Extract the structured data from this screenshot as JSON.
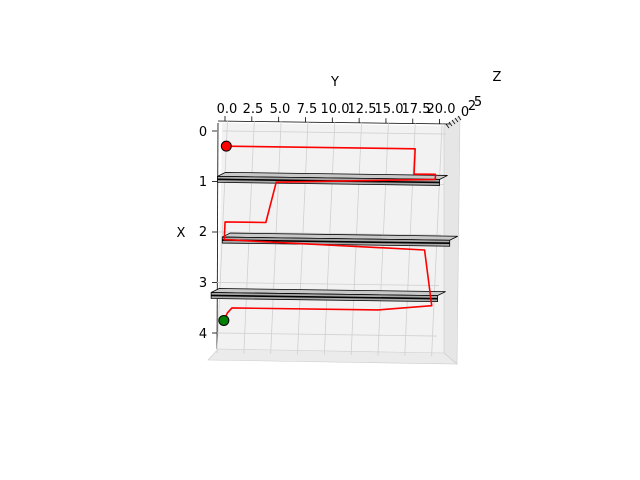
{
  "chart_data": {
    "type": "line3d",
    "axes": {
      "x_label": "X",
      "y_label": "Y",
      "z_label": "Z",
      "x_ticks": [
        "0",
        "1",
        "2",
        "3",
        "4"
      ],
      "y_ticks": [
        "0.0",
        "2.5",
        "5.0",
        "7.5",
        "10.0",
        "12.5",
        "15.0",
        "17.5",
        "20.0"
      ],
      "z_ticks": [
        "0",
        "2",
        "5"
      ],
      "xlim": [
        0,
        4.5
      ],
      "ylim": [
        0,
        20
      ],
      "grid": true
    },
    "walls": [
      {
        "x": 0.9,
        "y_start": -0.7,
        "y_end": 20.0
      },
      {
        "x": 2.1,
        "y_start": 0.0,
        "y_end": 21.2
      },
      {
        "x": 3.2,
        "y_start": -0.8,
        "y_end": 20.3
      }
    ],
    "path": {
      "color": "#ff0000",
      "points": [
        [
          0.3,
          0.0
        ],
        [
          0.3,
          17.6
        ],
        [
          0.8,
          17.6
        ],
        [
          0.8,
          19.6
        ],
        [
          0.9,
          19.6
        ],
        [
          1.0,
          4.8
        ],
        [
          1.8,
          4.0
        ],
        [
          1.8,
          0.2
        ],
        [
          2.15,
          0.2
        ],
        [
          2.3,
          18.9
        ],
        [
          3.4,
          19.8
        ],
        [
          3.5,
          14.8
        ],
        [
          3.5,
          1.2
        ],
        [
          3.6,
          0.8
        ],
        [
          3.75,
          0.5
        ]
      ]
    },
    "start": {
      "x": 0.3,
      "y": 0.0,
      "color": "#ff0000"
    },
    "goal": {
      "x": 3.75,
      "y": 0.5,
      "color": "#008000"
    }
  }
}
